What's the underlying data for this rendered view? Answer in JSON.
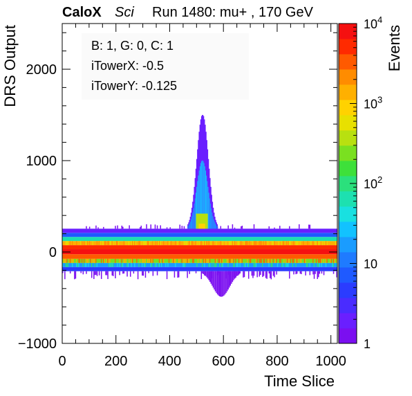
{
  "header": {
    "brand": "CaloX",
    "brand_sub": "Sci",
    "run": "Run 1480: mu+ , 170 GeV"
  },
  "info_box": {
    "line1": "B: 1, G: 0, C: 1",
    "line2": "iTowerX: -0.5",
    "line3": "iTowerY: -0.125"
  },
  "chart_data": {
    "type": "heatmap",
    "title": "",
    "xlabel": "Time Slice",
    "ylabel": "DRS Output",
    "zlabel": "Events",
    "xlim": [
      0,
      1024
    ],
    "ylim": [
      -1000,
      2500
    ],
    "zlim": [
      1,
      10000
    ],
    "z_scale": "log",
    "x_ticks": [
      "0",
      "200",
      "400",
      "600",
      "800",
      "1000"
    ],
    "y_ticks": [
      "−1000",
      "0",
      "1000",
      "2000"
    ],
    "z_ticks": [
      {
        "base": "1",
        "exp": ""
      },
      {
        "base": "10",
        "exp": ""
      },
      {
        "base": "10",
        "exp": "2"
      },
      {
        "base": "10",
        "exp": "3"
      },
      {
        "base": "10",
        "exp": "4"
      }
    ],
    "bands": [
      {
        "y0": -25,
        "y1": 30,
        "z": 9000
      },
      {
        "y0": 30,
        "y1": 75,
        "z": 6000
      },
      {
        "y0": 75,
        "y1": 120,
        "z": 1500
      },
      {
        "y0": -75,
        "y1": -25,
        "z": 4000
      },
      {
        "y0": -120,
        "y1": -75,
        "z": 200
      },
      {
        "y0": -165,
        "y1": -120,
        "z": 15
      },
      {
        "y0": 120,
        "y1": 165,
        "z": 60
      },
      {
        "y0": 165,
        "y1": 210,
        "z": 8
      },
      {
        "y0": -210,
        "y1": -165,
        "z": 5
      },
      {
        "y0": 210,
        "y1": 255,
        "z": 2
      }
    ],
    "pulse": {
      "x_center": 520,
      "y_peak": 1500,
      "peak_z": 300,
      "core_z": 30,
      "edge_z": 2
    },
    "undershoot": {
      "x_center": 590,
      "y_min": -490,
      "z": 1
    },
    "palette": [
      "#7b0ff0",
      "#6a1fff",
      "#4a2cff",
      "#2b3cff",
      "#1f5aff",
      "#1f7bff",
      "#1a9cff",
      "#12c2ff",
      "#19e0e0",
      "#1de0b0",
      "#2be07c",
      "#3ee03a",
      "#7ae020",
      "#b8e010",
      "#e8e000",
      "#ffd200",
      "#ffb000",
      "#ff8c00",
      "#ff5a00",
      "#ff2a00",
      "#f51010"
    ]
  }
}
